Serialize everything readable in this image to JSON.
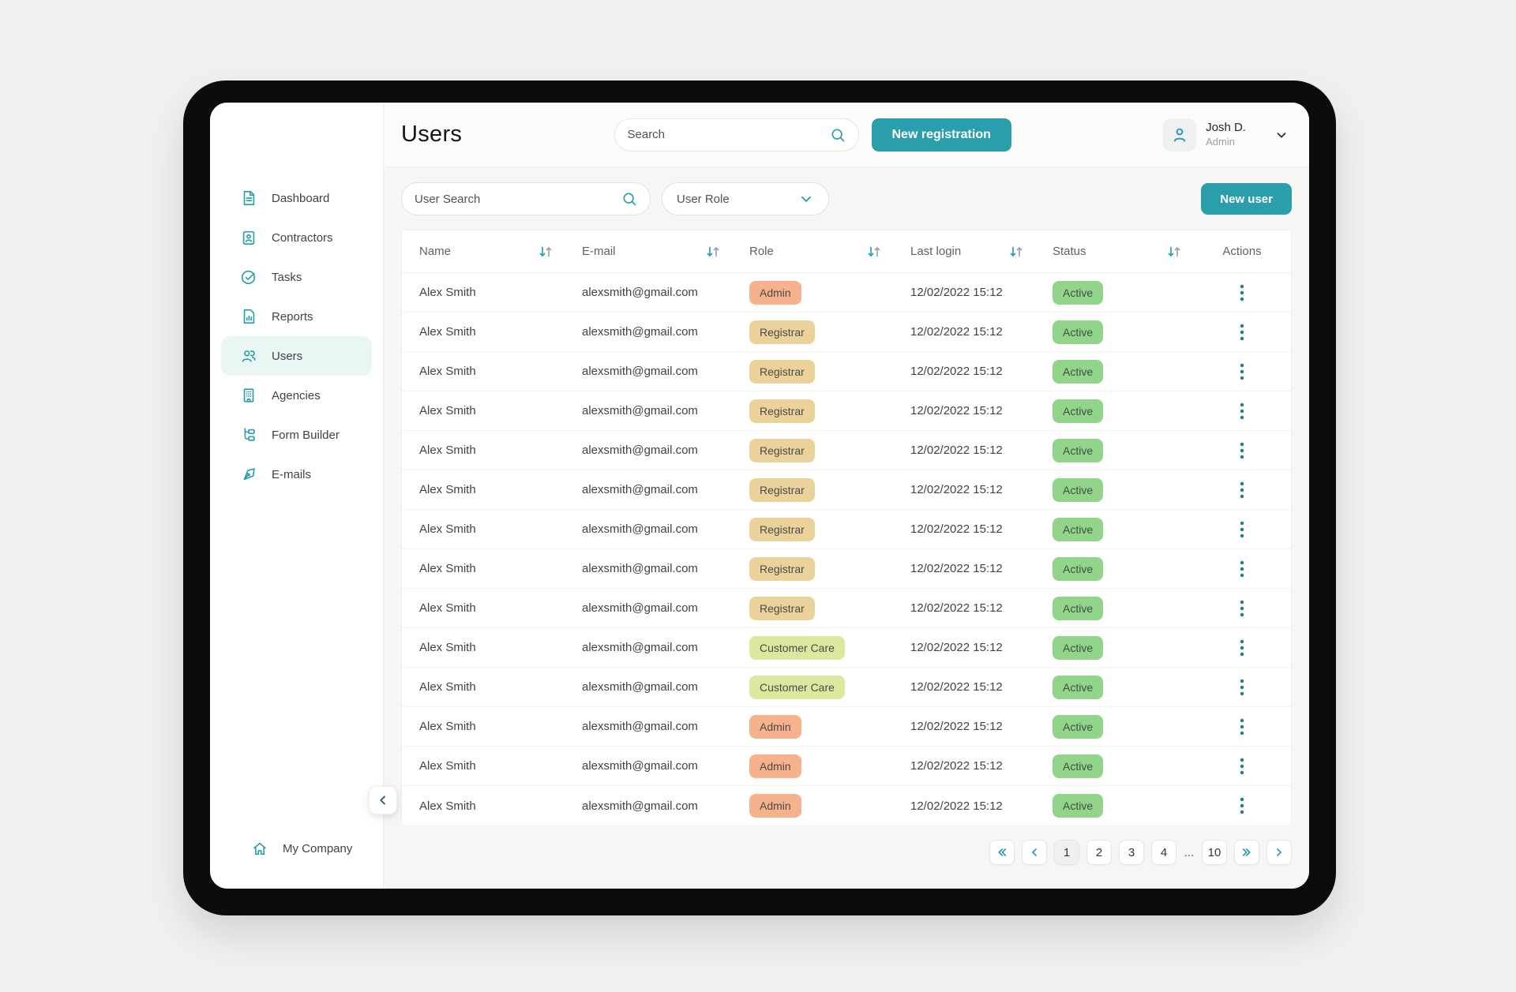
{
  "header": {
    "title": "Users",
    "search_placeholder": "Search",
    "new_registration_label": "New registration",
    "user_name": "Josh D.",
    "user_role": "Admin"
  },
  "sidebar": {
    "items": [
      {
        "label": "Dashboard",
        "icon": "dashboard-icon",
        "selected": false
      },
      {
        "label": "Contractors",
        "icon": "contractors-icon",
        "selected": false
      },
      {
        "label": "Tasks",
        "icon": "tasks-icon",
        "selected": false
      },
      {
        "label": "Reports",
        "icon": "reports-icon",
        "selected": false
      },
      {
        "label": "Users",
        "icon": "users-icon",
        "selected": true
      },
      {
        "label": "Agencies",
        "icon": "agencies-icon",
        "selected": false
      },
      {
        "label": "Form Builder",
        "icon": "form-builder-icon",
        "selected": false
      },
      {
        "label": "E-mails",
        "icon": "emails-icon",
        "selected": false
      }
    ],
    "footer": {
      "label": "My Company",
      "icon": "home-icon"
    }
  },
  "filters": {
    "search_placeholder": "User Search",
    "role_placeholder": "User Role",
    "new_user_label": "New user"
  },
  "table": {
    "columns": [
      "Name",
      "E-mail",
      "Role",
      "Last login",
      "Status",
      "Actions"
    ],
    "rows": [
      {
        "name": "Alex Smith",
        "email": "alexsmith@gmail.com",
        "role": "Admin",
        "last_login": "12/02/2022 15:12",
        "status": "Active"
      },
      {
        "name": "Alex Smith",
        "email": "alexsmith@gmail.com",
        "role": "Registrar",
        "last_login": "12/02/2022 15:12",
        "status": "Active"
      },
      {
        "name": "Alex Smith",
        "email": "alexsmith@gmail.com",
        "role": "Registrar",
        "last_login": "12/02/2022 15:12",
        "status": "Active"
      },
      {
        "name": "Alex Smith",
        "email": "alexsmith@gmail.com",
        "role": "Registrar",
        "last_login": "12/02/2022 15:12",
        "status": "Active"
      },
      {
        "name": "Alex Smith",
        "email": "alexsmith@gmail.com",
        "role": "Registrar",
        "last_login": "12/02/2022 15:12",
        "status": "Active"
      },
      {
        "name": "Alex Smith",
        "email": "alexsmith@gmail.com",
        "role": "Registrar",
        "last_login": "12/02/2022 15:12",
        "status": "Active"
      },
      {
        "name": "Alex Smith",
        "email": "alexsmith@gmail.com",
        "role": "Registrar",
        "last_login": "12/02/2022 15:12",
        "status": "Active"
      },
      {
        "name": "Alex Smith",
        "email": "alexsmith@gmail.com",
        "role": "Registrar",
        "last_login": "12/02/2022 15:12",
        "status": "Active"
      },
      {
        "name": "Alex Smith",
        "email": "alexsmith@gmail.com",
        "role": "Registrar",
        "last_login": "12/02/2022 15:12",
        "status": "Active"
      },
      {
        "name": "Alex Smith",
        "email": "alexsmith@gmail.com",
        "role": "Customer Care",
        "last_login": "12/02/2022 15:12",
        "status": "Active"
      },
      {
        "name": "Alex Smith",
        "email": "alexsmith@gmail.com",
        "role": "Customer Care",
        "last_login": "12/02/2022 15:12",
        "status": "Active"
      },
      {
        "name": "Alex Smith",
        "email": "alexsmith@gmail.com",
        "role": "Admin",
        "last_login": "12/02/2022 15:12",
        "status": "Active"
      },
      {
        "name": "Alex Smith",
        "email": "alexsmith@gmail.com",
        "role": "Admin",
        "last_login": "12/02/2022 15:12",
        "status": "Active"
      },
      {
        "name": "Alex Smith",
        "email": "alexsmith@gmail.com",
        "role": "Admin",
        "last_login": "12/02/2022 15:12",
        "status": "Active"
      }
    ]
  },
  "pagination": {
    "pages": [
      "1",
      "2",
      "3",
      "4",
      "...",
      "10"
    ],
    "current": "1"
  },
  "colors": {
    "primary_teal": "#2B9EAC",
    "role_badges": {
      "Admin": "#F5B28C",
      "Registrar": "#EBD29B",
      "Customer Care": "#DCE89E"
    },
    "status_badges": {
      "Active": "#92D489"
    }
  }
}
